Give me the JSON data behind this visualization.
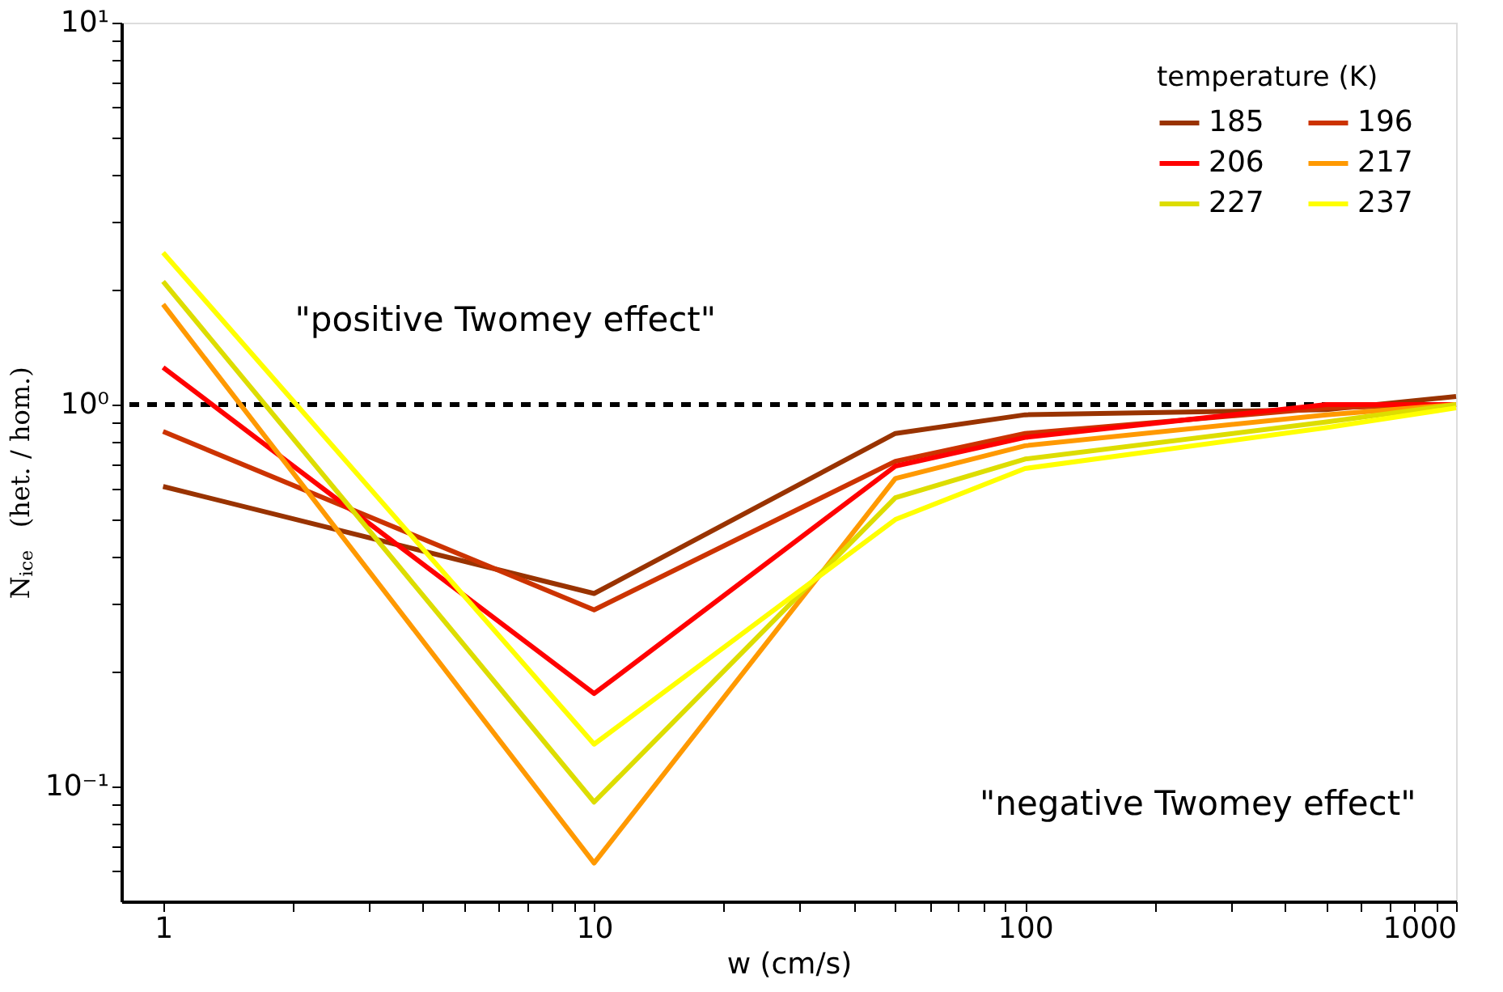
{
  "chart_data": {
    "type": "line",
    "xlabel": "w (cm/s)",
    "ylabel": "N$_{ice}$ (het. / hom.)",
    "legend_title": "temperature (K)",
    "x": [
      1,
      10,
      50,
      100,
      500,
      1000
    ],
    "series": [
      {
        "name": "185",
        "color": "#993300",
        "values": [
          0.61,
          0.32,
          0.84,
          0.94,
          0.97,
          1.05
        ]
      },
      {
        "name": "196",
        "color": "#cc3300",
        "values": [
          0.85,
          0.29,
          0.71,
          0.84,
          0.98,
          1.0
        ]
      },
      {
        "name": "206",
        "color": "#ff0000",
        "values": [
          1.25,
          0.175,
          0.69,
          0.82,
          1.0,
          1.0
        ]
      },
      {
        "name": "217",
        "color": "#ff9900",
        "values": [
          1.83,
          0.063,
          0.64,
          0.78,
          0.94,
          1.0
        ]
      },
      {
        "name": "227",
        "color": "#dddd00",
        "values": [
          2.1,
          0.091,
          0.57,
          0.72,
          0.9,
          1.0
        ]
      },
      {
        "name": "237",
        "color": "#ffff00",
        "values": [
          2.5,
          0.129,
          0.5,
          0.68,
          0.87,
          0.98
        ]
      }
    ],
    "log": "xy",
    "xlim": [
      0.8,
      1000
    ],
    "ylim": [
      0.05,
      10
    ],
    "xticks": [
      1,
      {
        "value": 2,
        "label": null
      },
      {
        "value": 3,
        "label": null
      },
      {
        "value": 4,
        "label": null
      },
      {
        "value": 5,
        "label": null
      },
      {
        "value": 6,
        "label": null
      },
      {
        "value": 7,
        "label": null
      },
      {
        "value": 8,
        "label": null
      },
      {
        "value": 9,
        "label": null
      },
      10,
      {
        "value": 20,
        "label": null
      },
      {
        "value": 30,
        "label": null
      },
      {
        "value": 40,
        "label": null
      },
      {
        "value": 50,
        "label": null
      },
      {
        "value": 60,
        "label": null
      },
      {
        "value": 70,
        "label": null
      },
      {
        "value": 80,
        "label": null
      },
      {
        "value": 90,
        "label": null
      },
      100,
      {
        "value": 200,
        "label": null
      },
      {
        "value": 300,
        "label": null
      },
      {
        "value": 400,
        "label": null
      },
      {
        "value": 500,
        "label": null
      },
      {
        "value": 600,
        "label": null
      },
      {
        "value": 700,
        "label": null
      },
      {
        "value": 800,
        "label": null
      },
      {
        "value": 900,
        "label": null
      },
      1000
    ],
    "yticks": [
      {
        "value": 0.06,
        "label": null
      },
      {
        "value": 0.07,
        "label": null
      },
      {
        "value": 0.08,
        "label": null
      },
      {
        "value": 0.09,
        "label": null
      },
      {
        "value": 0.1,
        "label": "10⁻¹"
      },
      {
        "value": 0.2,
        "label": null
      },
      {
        "value": 0.3,
        "label": null
      },
      {
        "value": 0.4,
        "label": null
      },
      {
        "value": 0.5,
        "label": null
      },
      {
        "value": 0.6,
        "label": null
      },
      {
        "value": 0.7,
        "label": null
      },
      {
        "value": 0.8,
        "label": null
      },
      {
        "value": 0.9,
        "label": null
      },
      {
        "value": 1,
        "label": "10⁰"
      },
      {
        "value": 2,
        "label": null
      },
      {
        "value": 3,
        "label": null
      },
      {
        "value": 4,
        "label": null
      },
      {
        "value": 5,
        "label": null
      },
      {
        "value": 6,
        "label": null
      },
      {
        "value": 7,
        "label": null
      },
      {
        "value": 8,
        "label": null
      },
      {
        "value": 9,
        "label": null
      },
      {
        "value": 10,
        "label": "10¹"
      }
    ],
    "ref_lines": [
      {
        "axis": "y",
        "value": 1,
        "color": "#000000",
        "line_style": "dashed"
      }
    ],
    "annotations": [
      "\"positive Twomey effect\"",
      "\"negative Twomey effect\""
    ],
    "legend": "top right",
    "grid": false,
    "marker": "none",
    "line_style": "solid"
  }
}
